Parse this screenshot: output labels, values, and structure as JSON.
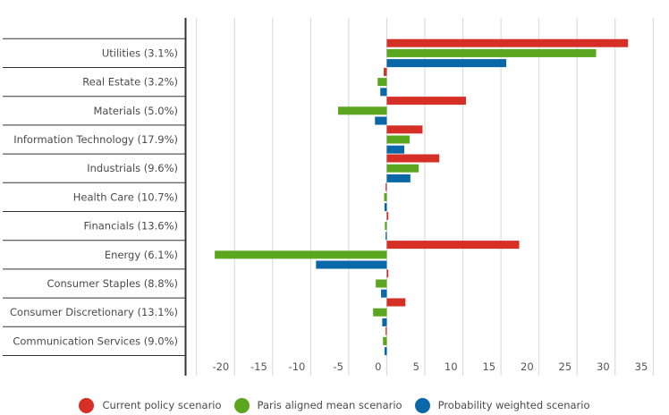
{
  "chart_data": {
    "type": "bar",
    "orientation": "horizontal",
    "title": "",
    "xlabel": "",
    "ylabel": "",
    "xlim": [
      -25,
      35
    ],
    "xticks": [
      -20,
      -15,
      -10,
      -5,
      0,
      5,
      10,
      15,
      20,
      25,
      30,
      35
    ],
    "grid": true,
    "legend_position": "bottom-center",
    "categories": [
      "Utilities (3.1%)",
      "Real Estate (3.2%)",
      "Materials (5.0%)",
      "Information Technology (17.9%)",
      "Industrials (9.6%)",
      "Health Care (10.7%)",
      "Financials (13.6%)",
      "Energy (6.1%)",
      "Consumer Staples (8.8%)",
      "Consumer Discretionary (13.1%)",
      "Communication Services (9.0%)"
    ],
    "series": [
      {
        "name": "Current policy scenario",
        "color": "#d62f25",
        "values": [
          31.7,
          -0.4,
          10.4,
          4.7,
          6.9,
          -0.15,
          0.2,
          17.4,
          0.2,
          2.45,
          -0.15
        ]
      },
      {
        "name": "Paris aligned mean scenario",
        "color": "#5aa61e",
        "values": [
          27.5,
          -1.2,
          -6.4,
          3.0,
          4.2,
          -0.35,
          -0.25,
          -22.6,
          -1.45,
          -1.8,
          -0.5
        ]
      },
      {
        "name": "Probability weighted scenario",
        "color": "#0a67a8",
        "values": [
          15.7,
          -0.85,
          -1.55,
          2.3,
          3.1,
          -0.3,
          -0.15,
          -9.3,
          -0.75,
          -0.6,
          -0.3
        ]
      }
    ]
  }
}
